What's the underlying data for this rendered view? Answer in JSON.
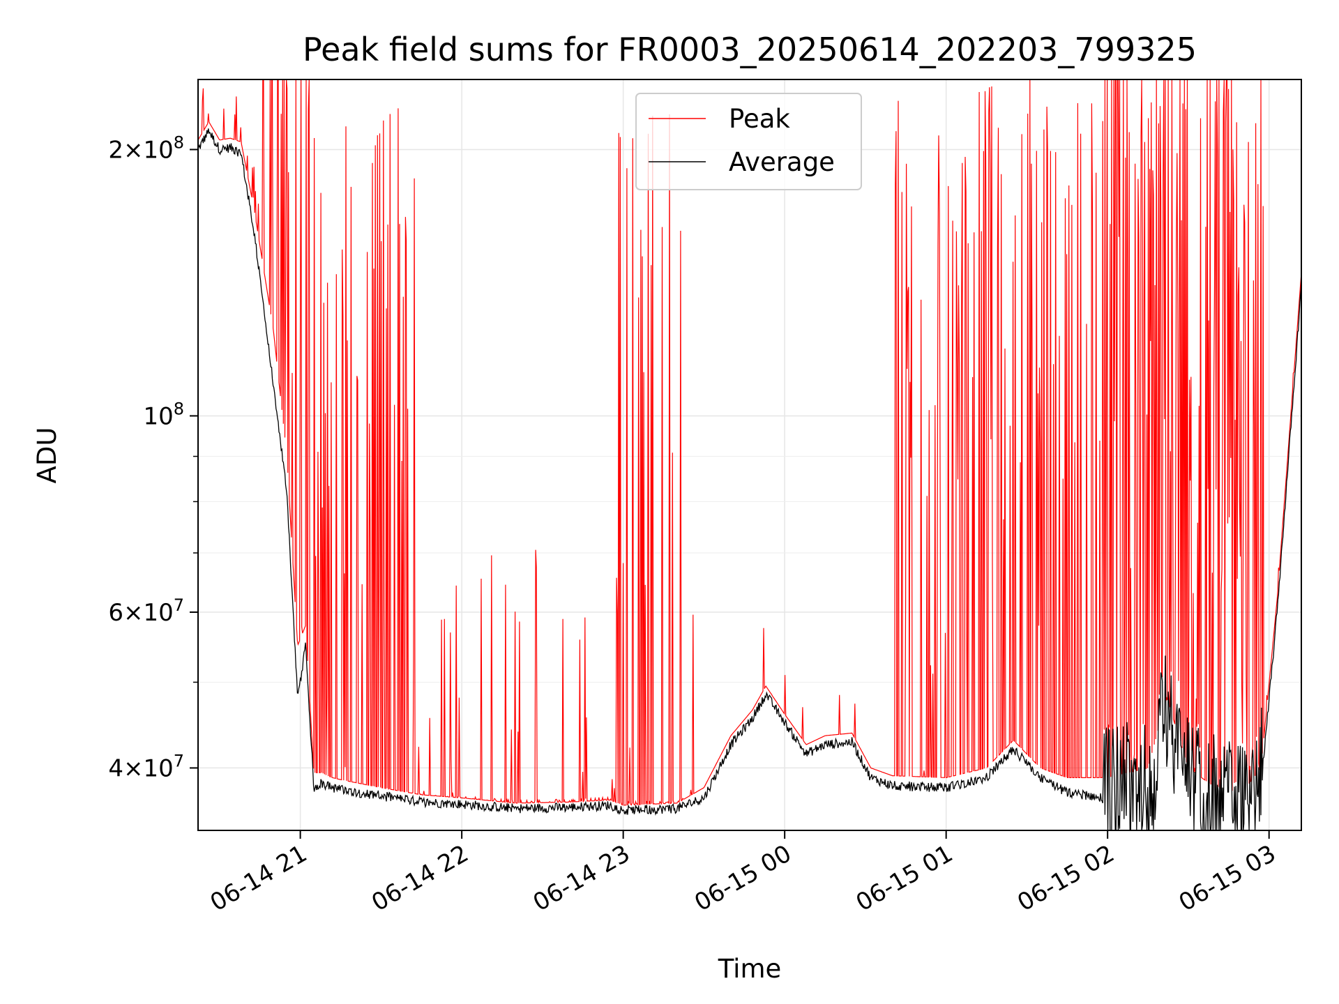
{
  "chart_data": {
    "type": "line",
    "title": "Peak field sums for FR0003_20250614_202203_799325",
    "xlabel": "Time",
    "ylabel": "ADU",
    "x_range": [
      "2025-06-14 20:22",
      "2025-06-15 03:12"
    ],
    "ylim": [
      34000000,
      240000000
    ],
    "yscale": "log",
    "grid": true,
    "legend": {
      "placement": "top-center",
      "entries": [
        "Peak",
        "Average"
      ]
    },
    "x_ticks": [
      {
        "value": "2025-06-14 21:00",
        "label": "06-14 21"
      },
      {
        "value": "2025-06-14 22:00",
        "label": "06-14 22"
      },
      {
        "value": "2025-06-14 23:00",
        "label": "06-14 23"
      },
      {
        "value": "2025-06-15 00:00",
        "label": "06-15 00"
      },
      {
        "value": "2025-06-15 01:00",
        "label": "06-15 01"
      },
      {
        "value": "2025-06-15 02:00",
        "label": "06-15 02"
      },
      {
        "value": "2025-06-15 03:00",
        "label": "06-15 03"
      }
    ],
    "y_ticks": [
      {
        "value": 40000000,
        "base": "4",
        "exp": "7"
      },
      {
        "value": 60000000,
        "base": "6",
        "exp": "7"
      },
      {
        "value": 100000000,
        "base": "",
        "exp": "8"
      },
      {
        "value": 200000000,
        "base": "2",
        "exp": "8"
      }
    ],
    "series": [
      {
        "name": "Average",
        "color": "#000000",
        "x": [
          "2025-06-14 20:22",
          "2025-06-14 20:26",
          "2025-06-14 20:30",
          "2025-06-14 20:34",
          "2025-06-14 20:38",
          "2025-06-14 20:43",
          "2025-06-14 20:50",
          "2025-06-14 20:55",
          "2025-06-14 20:59",
          "2025-06-14 21:02",
          "2025-06-14 21:05",
          "2025-06-14 21:08",
          "2025-06-14 21:10",
          "2025-06-14 21:12",
          "2025-06-14 21:15",
          "2025-06-14 21:30",
          "2025-06-14 21:45",
          "2025-06-14 22:00",
          "2025-06-14 22:20",
          "2025-06-14 22:40",
          "2025-06-14 22:55",
          "2025-06-14 23:00",
          "2025-06-14 23:20",
          "2025-06-14 23:30",
          "2025-06-14 23:40",
          "2025-06-14 23:48",
          "2025-06-14 23:53",
          "2025-06-15 00:00",
          "2025-06-15 00:08",
          "2025-06-15 00:15",
          "2025-06-15 00:25",
          "2025-06-15 00:32",
          "2025-06-15 00:40",
          "2025-06-15 01:00",
          "2025-06-15 01:15",
          "2025-06-15 01:25",
          "2025-06-15 01:35",
          "2025-06-15 01:45",
          "2025-06-15 02:00",
          "2025-06-15 02:15",
          "2025-06-15 02:22",
          "2025-06-15 02:30",
          "2025-06-15 02:40",
          "2025-06-15 02:50",
          "2025-06-15 02:57",
          "2025-06-15 03:03",
          "2025-06-15 03:12"
        ],
        "values": [
          200000000,
          210000000,
          200000000,
          201000000,
          198000000,
          160000000,
          108000000,
          82000000,
          48000000,
          55000000,
          38000000,
          38500000,
          38200000,
          38000000,
          37800000,
          37200000,
          36600000,
          36400000,
          36000000,
          36100000,
          36300000,
          35800000,
          36000000,
          37000000,
          42500000,
          45500000,
          48500000,
          45000000,
          41500000,
          42500000,
          42800000,
          39000000,
          38200000,
          38000000,
          39000000,
          42000000,
          39000000,
          37500000,
          37000000,
          37500000,
          45000000,
          38000000,
          36000000,
          35500000,
          38000000,
          60000000,
          140000000
        ]
      },
      {
        "name": "Peak",
        "color": "#ff0000",
        "x": [
          "2025-06-14 20:22",
          "2025-06-14 20:26",
          "2025-06-14 20:30",
          "2025-06-14 20:34",
          "2025-06-14 20:38",
          "2025-06-14 20:43",
          "2025-06-14 20:50",
          "2025-06-14 20:55",
          "2025-06-14 20:59",
          "2025-06-14 21:02",
          "2025-06-14 21:05",
          "2025-06-14 21:08",
          "2025-06-14 21:10",
          "2025-06-14 21:12",
          "2025-06-14 21:15",
          "2025-06-14 21:30",
          "2025-06-14 21:45",
          "2025-06-14 22:00",
          "2025-06-14 22:20",
          "2025-06-14 22:40",
          "2025-06-14 22:55",
          "2025-06-14 23:00",
          "2025-06-14 23:20",
          "2025-06-14 23:30",
          "2025-06-14 23:40",
          "2025-06-14 23:48",
          "2025-06-14 23:53",
          "2025-06-15 00:00",
          "2025-06-15 00:08",
          "2025-06-15 00:15",
          "2025-06-15 00:25",
          "2025-06-15 00:32",
          "2025-06-15 00:40",
          "2025-06-15 01:00",
          "2025-06-15 01:15",
          "2025-06-15 01:25",
          "2025-06-15 01:35",
          "2025-06-15 01:45",
          "2025-06-15 02:00",
          "2025-06-15 02:15",
          "2025-06-15 02:22",
          "2025-06-15 02:30",
          "2025-06-15 02:40",
          "2025-06-15 02:50",
          "2025-06-15 02:57",
          "2025-06-15 03:03",
          "2025-06-15 03:12"
        ],
        "values": [
          205000000,
          215000000,
          205000000,
          206000000,
          204000000,
          170000000,
          125000000,
          90000000,
          55000000,
          58000000,
          39500000,
          39500000,
          39200000,
          39000000,
          38800000,
          38000000,
          37300000,
          37000000,
          36500000,
          36600000,
          36800000,
          36300000,
          36500000,
          38000000,
          43500000,
          46500000,
          49500000,
          46000000,
          42500000,
          43500000,
          43800000,
          40000000,
          39200000,
          39000000,
          40000000,
          43000000,
          40000000,
          39000000,
          39000000,
          40000000,
          48000000,
          40000000,
          38000000,
          37500000,
          40000000,
          62000000,
          145000000
        ]
      }
    ]
  }
}
